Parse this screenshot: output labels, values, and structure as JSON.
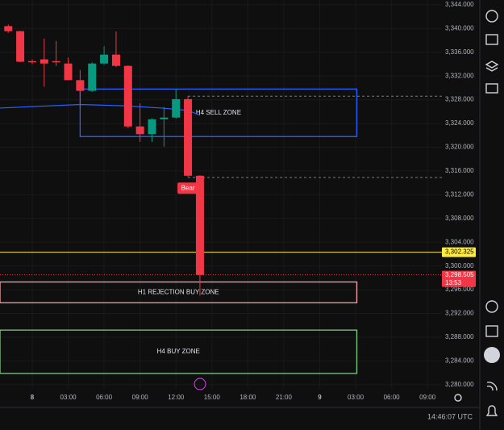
{
  "chart_data": {
    "type": "candlestick",
    "x": [
      -2,
      -1,
      0,
      1,
      2,
      3,
      4,
      5,
      6,
      7,
      8,
      9,
      10,
      11,
      12,
      13,
      14
    ],
    "series": [
      {
        "name": "open",
        "values": [
          3340.4,
          3339.55,
          3334.5,
          3334.8,
          3334.5,
          3334.1,
          3331.3,
          3329.5,
          3334.1,
          3335.6,
          3333.7,
          3323.5,
          3322.2,
          3324.7,
          3325.0,
          3328.1,
          3315.2
        ]
      },
      {
        "name": "high",
        "values": [
          3340.66,
          3339.6,
          3334.8,
          3338.3,
          3337.9,
          3335.1,
          3333.0,
          3334.3,
          3337.0,
          3339.5,
          3333.8,
          3327.4,
          3324.9,
          3326.8,
          3329.8,
          3328.6,
          3315.3
        ]
      },
      {
        "name": "low",
        "values": [
          3339.27,
          3334.3,
          3334.0,
          3330.2,
          3333.7,
          3331.3,
          3326.7,
          3329.3,
          3333.9,
          3333.5,
          3323.2,
          3320.9,
          3320.9,
          3320.1,
          3324.8,
          3315.0,
          3295.0
        ]
      },
      {
        "name": "close",
        "values": [
          3339.55,
          3334.4,
          3334.3,
          3334.1,
          3334.3,
          3331.3,
          3329.5,
          3334.1,
          3335.6,
          3333.7,
          3323.5,
          3322.2,
          3324.7,
          3325.0,
          3328.1,
          3315.2,
          3298.5
        ]
      }
    ],
    "up_color": "#089981",
    "down_color": "#f23645",
    "moving_average": {
      "color": "#2962ff",
      "x": [
        -2.69,
        4,
        7.4,
        10.8,
        13,
        14
      ],
      "values": [
        3326.6,
        3327.2,
        3327.0,
        3326.6,
        3326.2,
        3325.4
      ]
    },
    "zones": [
      {
        "label": "H4 SELL ZONE",
        "color": "#2962ff",
        "x": [
          4,
          27.1
        ],
        "y": [
          3321.8,
          3329.8
        ]
      },
      {
        "label": "H1 REJECTION BUY ZONE",
        "color": "#f7a1a9",
        "x": [
          -2.69,
          27.1
        ],
        "y": [
          3293.8,
          3297.3
        ]
      },
      {
        "label": "H4 BUY ZONE",
        "color": "#81c784",
        "x": [
          -2.69,
          27.1
        ],
        "y": [
          3281.9,
          3289.2
        ]
      }
    ],
    "levels": [
      3328.6,
      3314.9
    ],
    "annotation": {
      "text": "Bear",
      "x": 13,
      "y": 3315.0
    },
    "price_line": {
      "value": 3302.325,
      "label": "3,302.325",
      "color": "#ffeb3b"
    },
    "last_price": {
      "value": 3298.505,
      "label": "3,298.505",
      "countdown": "13:53"
    },
    "xlim": [
      -2.69,
      34.2
    ],
    "ylim": [
      3279.3,
      3344.8
    ],
    "xticks": [
      {
        "value": 0,
        "label": "8"
      },
      {
        "value": 3,
        "label": "03:00"
      },
      {
        "value": 6,
        "label": "06:00"
      },
      {
        "value": 9,
        "label": "09:00"
      },
      {
        "value": 12,
        "label": "12:00"
      },
      {
        "value": 15,
        "label": "15:00"
      },
      {
        "value": 18,
        "label": "18:00"
      },
      {
        "value": 21,
        "label": "21:00"
      },
      {
        "value": 24,
        "label": "9"
      },
      {
        "value": 27,
        "label": "03:00"
      },
      {
        "value": 30,
        "label": "06:00"
      },
      {
        "value": 33,
        "label": "09:00"
      }
    ],
    "yticks": [
      {
        "value": 3344,
        "label": "3,344.000"
      },
      {
        "value": 3340,
        "label": "3,340.000"
      },
      {
        "value": 3336,
        "label": "3,336.000"
      },
      {
        "value": 3332,
        "label": "3,332.000"
      },
      {
        "value": 3328,
        "label": "3,328.000"
      },
      {
        "value": 3324,
        "label": "3,324.000"
      },
      {
        "value": 3320,
        "label": "3,320.000"
      },
      {
        "value": 3316,
        "label": "3,316.000"
      },
      {
        "value": 3312,
        "label": "3,312.000"
      },
      {
        "value": 3308,
        "label": "3,308.000"
      },
      {
        "value": 3304,
        "label": "3,304.000"
      },
      {
        "value": 3300,
        "label": "3,300.000"
      },
      {
        "value": 3296,
        "label": "3,296.000"
      },
      {
        "value": 3292,
        "label": "3,292.000"
      },
      {
        "value": 3288,
        "label": "3,288.000"
      },
      {
        "value": 3284,
        "label": "3,284.000"
      },
      {
        "value": 3280,
        "label": "3,280.000"
      }
    ],
    "grid": true,
    "clock": "14:46:07 UTC"
  }
}
